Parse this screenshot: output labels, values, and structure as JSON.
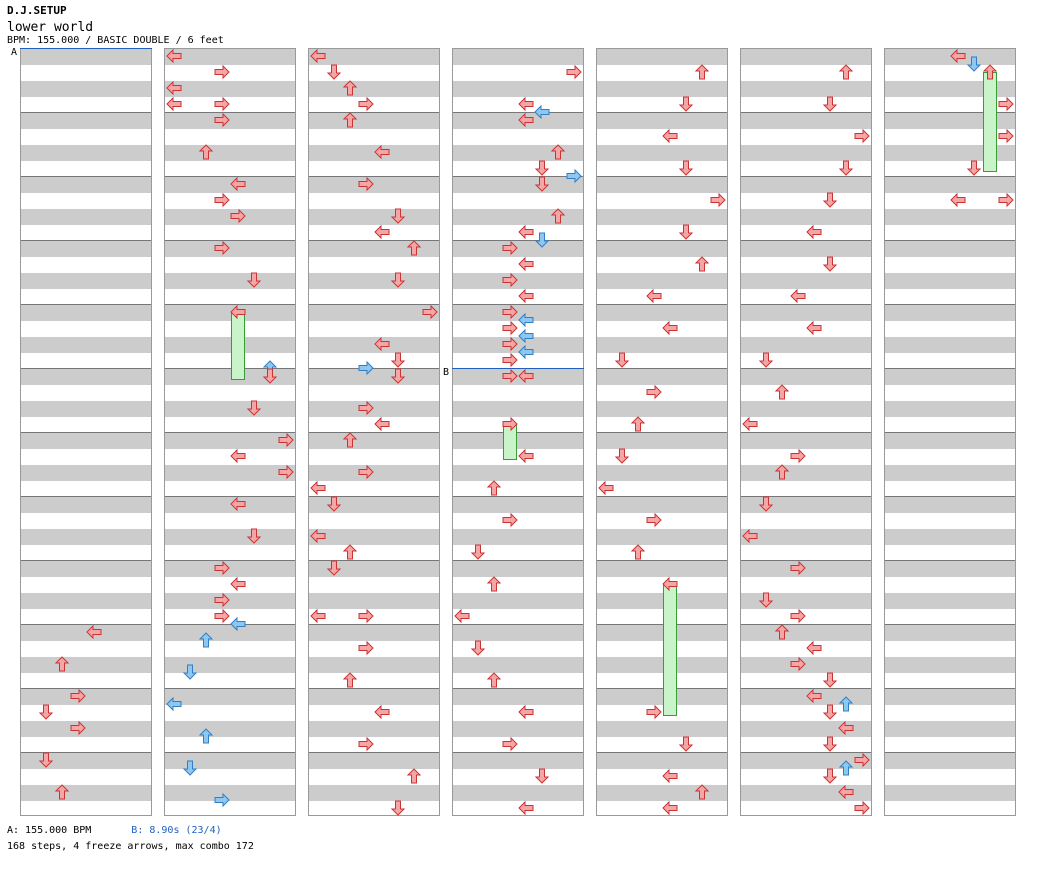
{
  "header": {
    "site": "D.J.SETUP",
    "song": "lower world",
    "info": "BPM: 155.000 / BASIC DOUBLE / 6 feet"
  },
  "markers": {
    "a": "A",
    "b": "B"
  },
  "footer": {
    "bpm_a": "A: 155.000 BPM",
    "bpm_b": "B: 8.90s (23/4)",
    "stats": "168 steps, 4 freeze arrows, max combo 172"
  },
  "colors": {
    "normal": "#f4a5a5",
    "normal_stroke": "#cc3333",
    "stop": "#8ec8f0",
    "stop_stroke": "#2f7fc8",
    "freeze": "#c9f3c9"
  }
}
